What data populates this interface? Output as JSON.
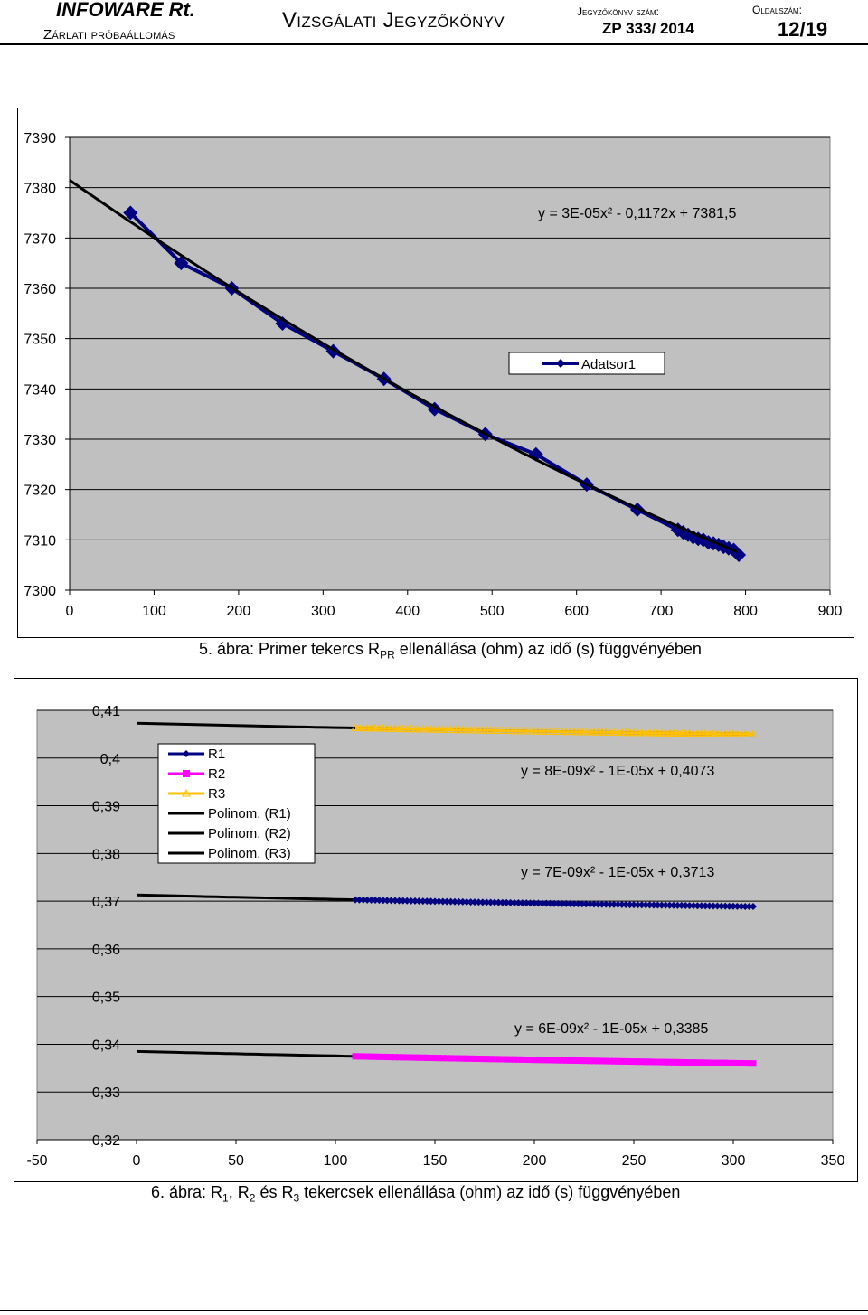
{
  "header": {
    "company": "INFOWARE Rt.",
    "station": "Zárlati próbaállomás",
    "title": "Vizsgálati Jegyzőkönyv",
    "doc_label": "Jegyzőkönyv szám:",
    "doc_number": "ZP 333/ 2014",
    "page_label": "Oldalszám:",
    "page_number": "12/19"
  },
  "captions": {
    "fig1_prefix": "5. ábra: Primer tekercs R",
    "fig1_sub": "PR",
    "fig1_suffix": " ellenállása (ohm) az idő (s) függvényében",
    "fig2_a": "6. ábra: R",
    "fig2_sub1": "1",
    "fig2_b": ", R",
    "fig2_sub2": "2",
    "fig2_c": " és R",
    "fig2_sub3": "3",
    "fig2_d": " tekercsek ellenállása (ohm) az idő (s) függvényében"
  },
  "chart_data": [
    {
      "type": "line",
      "x_ticks": [
        "0",
        "100",
        "200",
        "300",
        "400",
        "500",
        "600",
        "700",
        "800",
        "900"
      ],
      "y_ticks": [
        "7300",
        "7310",
        "7320",
        "7330",
        "7340",
        "7350",
        "7360",
        "7370",
        "7380",
        "7390"
      ],
      "xlim": [
        0,
        900
      ],
      "ylim": [
        7300,
        7390
      ],
      "grid": true,
      "legend_position": "center-right",
      "series": [
        {
          "name": "Adatsor1",
          "color": "#000080",
          "x": [
            72,
            132,
            192,
            252,
            312,
            372,
            432,
            492,
            552,
            612,
            672,
            720,
            726,
            732,
            738,
            744,
            750,
            756,
            762,
            768,
            774,
            780,
            786,
            792
          ],
          "y": [
            7375,
            7365,
            7360,
            7353,
            7347.5,
            7342,
            7336,
            7331,
            7327,
            7321,
            7316,
            7312,
            7311.5,
            7311,
            7310.5,
            7310.2,
            7310,
            7309.5,
            7309.3,
            7309,
            7308.6,
            7308.3,
            7308,
            7307
          ]
        }
      ],
      "trendlines": [
        {
          "equation": "y = 3E-05x² - 0,1172x + 7381,5",
          "a": 3e-05,
          "b": -0.1172,
          "c": 7381.5,
          "x_range": [
            0,
            790
          ],
          "color": "#000000"
        }
      ]
    },
    {
      "type": "line",
      "x_ticks": [
        "-50",
        "0",
        "50",
        "100",
        "150",
        "200",
        "250",
        "300",
        "350"
      ],
      "y_ticks": [
        "0,32",
        "0,33",
        "0,34",
        "0,35",
        "0,36",
        "0,37",
        "0,38",
        "0,39",
        "0,4",
        "0,41"
      ],
      "xlim": [
        -50,
        350
      ],
      "ylim": [
        0.32,
        0.41
      ],
      "grid": true,
      "legend_position": "top-left",
      "series": [
        {
          "name": "R1",
          "color": "#000080",
          "marker": "diamond",
          "x_range": [
            110,
            310
          ],
          "step": 2,
          "a": 7e-09,
          "b": -1e-05,
          "c": 0.3713
        },
        {
          "name": "R2",
          "color": "#ff00ff",
          "marker": "square",
          "x_range": [
            110,
            310
          ],
          "step": 2,
          "a": 6e-09,
          "b": -1e-05,
          "c": 0.3385
        },
        {
          "name": "R3",
          "color": "#ffc000",
          "marker": "triangle",
          "x_range": [
            110,
            310
          ],
          "step": 2,
          "a": 8e-09,
          "b": -1e-05,
          "c": 0.4073
        }
      ],
      "trendlines": [
        {
          "name": "Polinom. (R1)",
          "equation": "y = 7E-09x² - 1E-05x + 0,3713",
          "a": 7e-09,
          "b": -1e-05,
          "c": 0.3713,
          "x_range": [
            0,
            310
          ],
          "color": "#000000"
        },
        {
          "name": "Polinom. (R2)",
          "equation": "y = 6E-09x² - 1E-05x + 0,3385",
          "a": 6e-09,
          "b": -1e-05,
          "c": 0.3385,
          "x_range": [
            0,
            310
          ],
          "color": "#000000"
        },
        {
          "name": "Polinom. (R3)",
          "equation": "y = 8E-09x² - 1E-05x + 0,4073",
          "a": 8e-09,
          "b": -1e-05,
          "c": 0.4073,
          "x_range": [
            0,
            310
          ],
          "color": "#000000"
        }
      ]
    }
  ]
}
